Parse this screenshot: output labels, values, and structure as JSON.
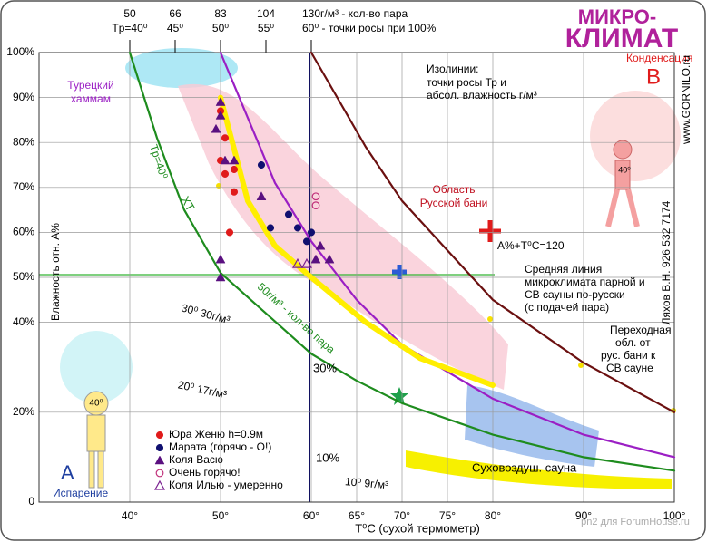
{
  "chart_data": {
    "type": "scatter",
    "title": [
      "МИКРО-",
      "КЛИМАТ"
    ],
    "x_label": "T⁰C (сухой термометр)",
    "y_label": "Влажность отн. A%",
    "xlim": [
      30,
      100
    ],
    "ylim": [
      0,
      100
    ],
    "xticks": [
      {
        "value": 40,
        "label": "40°"
      },
      {
        "value": 50,
        "label": "50°"
      },
      {
        "value": 60,
        "label": "60°"
      },
      {
        "value": 65,
        "label": "65°"
      },
      {
        "value": 70,
        "label": "70°"
      },
      {
        "value": 75,
        "label": "75°"
      },
      {
        "value": 80,
        "label": "80°"
      },
      {
        "value": 90,
        "label": "90°"
      },
      {
        "value": 100,
        "label": "100°"
      }
    ],
    "yticks": [
      0,
      {
        "value": 20,
        "label": "20%"
      },
      {
        "value": 40,
        "label": "40%"
      },
      {
        "value": 50,
        "label": "50%"
      },
      {
        "value": 60,
        "label": "60%"
      },
      {
        "value": 70,
        "label": "70%"
      },
      {
        "value": 80,
        "label": "80%"
      },
      {
        "value": 90,
        "label": "90%"
      },
      {
        "value": 100,
        "label": "100%"
      }
    ],
    "top_axis": [
      {
        "value": 40,
        "label": "50",
        "sublabel": "Tр=40⁰"
      },
      {
        "value": 45,
        "label": "66",
        "sublabel": "45⁰"
      },
      {
        "value": 50,
        "label": "83",
        "sublabel": "50⁰"
      },
      {
        "value": 55,
        "label": "104",
        "sublabel": "55⁰"
      },
      {
        "value": 60,
        "label": "130г/м³ - кол-во пара",
        "sublabel": "60⁰ - точки росы при 100%"
      }
    ],
    "grid": true,
    "curves": [
      {
        "color": "#1e8c1e",
        "x": [
          40,
          43,
          46,
          50,
          55,
          60,
          65,
          70,
          80,
          90,
          100
        ],
        "y": [
          100,
          81,
          65,
          51,
          42,
          33,
          27,
          22,
          15,
          10,
          7
        ]
      },
      {
        "color": "#9b1fc4",
        "x": [
          50,
          56,
          60,
          65,
          70,
          80,
          90,
          100
        ],
        "y": [
          100,
          71,
          58,
          45,
          35,
          23,
          15,
          10
        ]
      },
      {
        "color": "#6b1010",
        "x": [
          60,
          66,
          70,
          80,
          90,
          100
        ],
        "y": [
          100,
          79,
          67,
          45,
          31,
          20
        ]
      },
      {
        "color": "#ffee00",
        "x": [
          50,
          53,
          56,
          60,
          66,
          72,
          80
        ],
        "y": [
          90,
          67,
          57,
          50,
          40,
          32,
          26
        ]
      }
    ],
    "series": [
      {
        "name": "Юра Женю h=0.9м",
        "color": "#e01b1b",
        "marker": "circle",
        "x": [
          50,
          50.5,
          50,
          51.5,
          50.5,
          51.5,
          51
        ],
        "y": [
          87,
          81,
          76,
          74,
          73,
          69,
          60
        ]
      },
      {
        "name": "Марата (горячо - О!)",
        "color": "#101070",
        "marker": "circle",
        "x": [
          54.5,
          55.5,
          57.5,
          58.5,
          59.5,
          60
        ],
        "y": [
          75,
          61,
          64,
          61,
          58,
          60
        ]
      },
      {
        "name": "Коля Васю",
        "color": "#5a1080",
        "marker": "triangle",
        "x": [
          50,
          50,
          49.5,
          50.5,
          51.5,
          54.5,
          50,
          50,
          61,
          62,
          60.5
        ],
        "y": [
          89,
          86,
          83,
          76,
          76,
          68,
          54,
          50,
          57,
          54,
          54
        ]
      },
      {
        "name": "Очень горячо!",
        "color": "#c0307a",
        "marker": "open-circle",
        "x": [
          60.5,
          60.5
        ],
        "y": [
          68,
          66
        ]
      },
      {
        "name": "Коля Илью - умеренно",
        "color": "#7a2090",
        "marker": "open-triangle",
        "x": [
          58.5,
          59.5
        ],
        "y": [
          53,
          53
        ]
      }
    ],
    "annotations": [
      "Конденсация",
      "B",
      "www.GORNILO.ru",
      "Ляхов В.Н.   926 532 7174",
      "Изолинии:",
      "точки росы Тр и",
      "абсол. влажность г/м³",
      "Турецкий",
      "хаммам",
      "Tр=40⁰",
      "ХТ",
      "Область",
      "Русской бани",
      "A%+T⁰C=120",
      "Средняя линия",
      "микроклимата парной и",
      "СВ сауны по-русски",
      "(с подачей пара)",
      "Переходная",
      "обл. от",
      "рус. бани к",
      "СВ сауне",
      "50г/м³ - кол-во пара",
      "30⁰ 30г/м³",
      "20⁰ 17г/м³",
      "10⁰ 9г/м³",
      "30%",
      "10%",
      "Суховоздуш. сауна",
      "A",
      "Испарение",
      "40⁰",
      "40⁰",
      "pn2 для ForumHouse.ru"
    ]
  }
}
